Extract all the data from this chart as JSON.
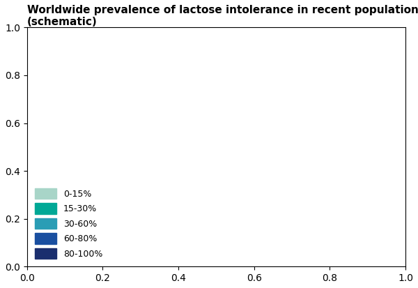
{
  "title": "Worldwide prevalence of lactose intolerance in recent populations\n(schematic)",
  "title_fontsize": 11,
  "background_color": "#ffffff",
  "legend_items": [
    {
      "label": "0-15%",
      "color": "#a8d5c8"
    },
    {
      "label": "15-30%",
      "color": "#00a896"
    },
    {
      "label": "30-60%",
      "color": "#2a9db5"
    },
    {
      "label": "60-80%",
      "color": "#1a4fa0"
    },
    {
      "label": "80-100%",
      "color": "#1a2e6e"
    }
  ],
  "ocean_color": "#ffffff",
  "border_color": "#ffffff"
}
